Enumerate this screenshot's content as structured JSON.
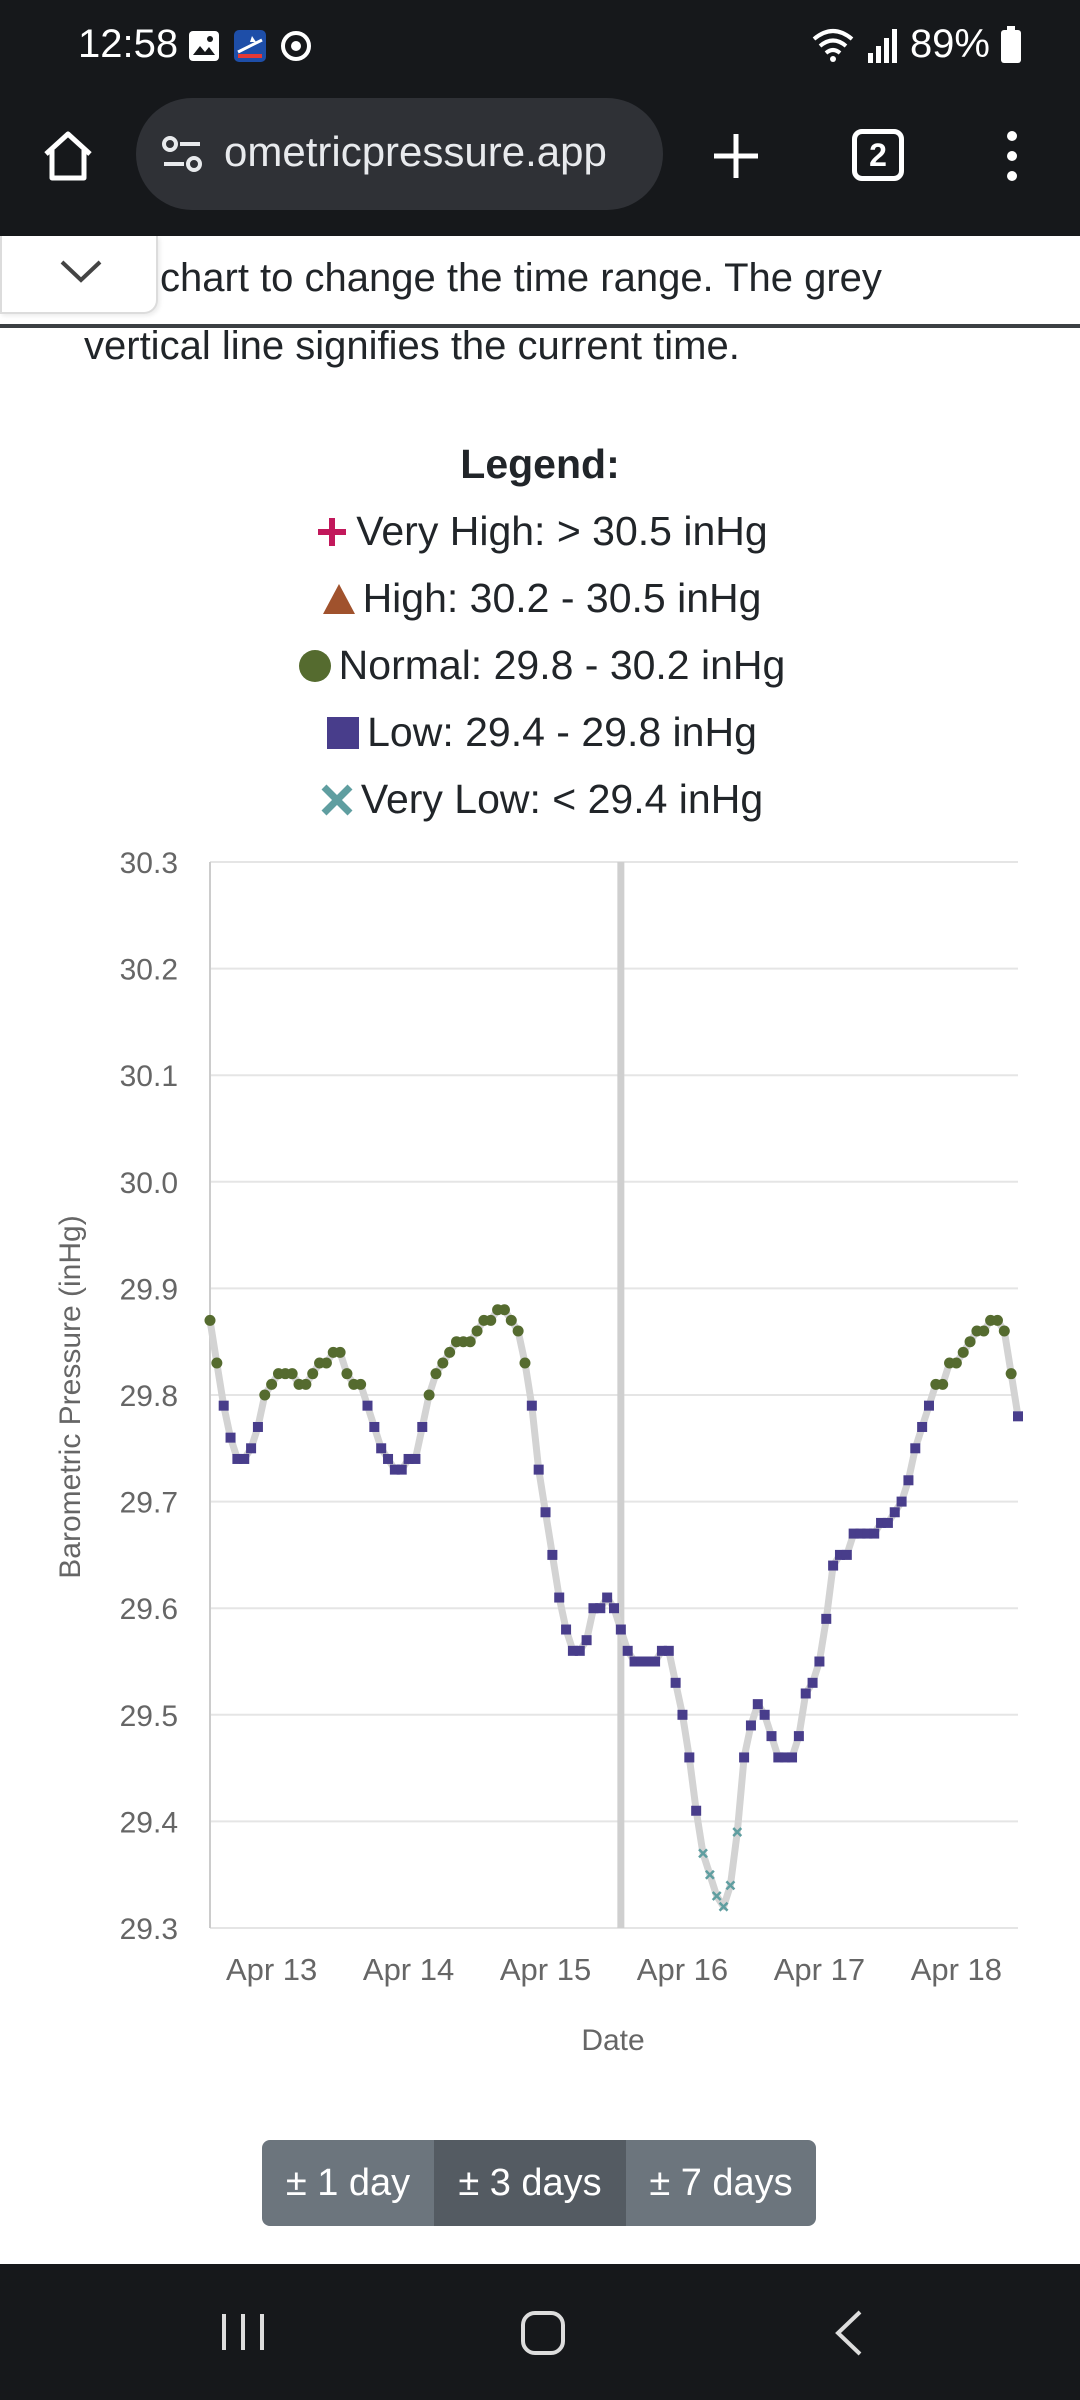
{
  "status_bar": {
    "time": "12:58",
    "battery": "89%",
    "icons": [
      "gallery-icon",
      "app-notification-icon",
      "sync-icon",
      "wifi-icon",
      "signal-icon",
      "battery-icon"
    ]
  },
  "browser": {
    "url_display": "ometricpressure.app",
    "tab_count": "2"
  },
  "page": {
    "intro_line1": "chart to change the time range. The grey",
    "intro_line2": "vertical line signifies the current time.",
    "legend": {
      "title": "Legend:",
      "items": [
        {
          "label": "Very High: > 30.5 inHg",
          "symbol": "plus",
          "color": "#c2185b"
        },
        {
          "label": "High: 30.2 - 30.5 inHg",
          "symbol": "triangle",
          "color": "#a0522d"
        },
        {
          "label": "Normal: 29.8 - 30.2 inHg",
          "symbol": "circle",
          "color": "#556b2f"
        },
        {
          "label": "Low: 29.4 - 29.8 inHg",
          "symbol": "square",
          "color": "#483d8b"
        },
        {
          "label": "Very Low: < 29.4 inHg",
          "symbol": "x",
          "color": "#5f9ea0"
        }
      ]
    },
    "range_buttons": [
      "± 1 day",
      "± 3 days",
      "± 7 days"
    ],
    "active_range": "± 3 days"
  },
  "chart_data": {
    "type": "scatter",
    "title": "",
    "xlabel": "Date",
    "ylabel": "Barometric Pressure (inHg)",
    "ylim": [
      29.3,
      30.3
    ],
    "xlim": [
      12.55,
      18.45
    ],
    "yticks": [
      "30.3",
      "30.2",
      "30.1",
      "30.0",
      "29.9",
      "29.8",
      "29.7",
      "29.6",
      "29.5",
      "29.4",
      "29.3"
    ],
    "xticks": [
      {
        "value": 13,
        "label": "Apr 13"
      },
      {
        "value": 14,
        "label": "Apr 14"
      },
      {
        "value": 15,
        "label": "Apr 15"
      },
      {
        "value": 16,
        "label": "Apr 16"
      },
      {
        "value": 17,
        "label": "Apr 17"
      },
      {
        "value": 18,
        "label": "Apr 18"
      }
    ],
    "current_time_x": 15.55,
    "line_color": "#d3d3d3",
    "category_thresholds": {
      "very_high": 30.5,
      "high": 30.2,
      "normal": 29.8,
      "low": 29.4
    },
    "series": [
      {
        "name": "Barometric Pressure",
        "points": [
          [
            12.55,
            29.87
          ],
          [
            12.6,
            29.83
          ],
          [
            12.65,
            29.79
          ],
          [
            12.7,
            29.76
          ],
          [
            12.75,
            29.74
          ],
          [
            12.8,
            29.74
          ],
          [
            12.85,
            29.75
          ],
          [
            12.9,
            29.77
          ],
          [
            12.95,
            29.8
          ],
          [
            13.0,
            29.81
          ],
          [
            13.05,
            29.82
          ],
          [
            13.1,
            29.82
          ],
          [
            13.15,
            29.82
          ],
          [
            13.2,
            29.81
          ],
          [
            13.25,
            29.81
          ],
          [
            13.3,
            29.82
          ],
          [
            13.35,
            29.83
          ],
          [
            13.4,
            29.83
          ],
          [
            13.45,
            29.84
          ],
          [
            13.5,
            29.84
          ],
          [
            13.55,
            29.82
          ],
          [
            13.6,
            29.81
          ],
          [
            13.65,
            29.81
          ],
          [
            13.7,
            29.79
          ],
          [
            13.75,
            29.77
          ],
          [
            13.8,
            29.75
          ],
          [
            13.85,
            29.74
          ],
          [
            13.9,
            29.73
          ],
          [
            13.95,
            29.73
          ],
          [
            14.0,
            29.74
          ],
          [
            14.05,
            29.74
          ],
          [
            14.1,
            29.77
          ],
          [
            14.15,
            29.8
          ],
          [
            14.2,
            29.82
          ],
          [
            14.25,
            29.83
          ],
          [
            14.3,
            29.84
          ],
          [
            14.35,
            29.85
          ],
          [
            14.4,
            29.85
          ],
          [
            14.45,
            29.85
          ],
          [
            14.5,
            29.86
          ],
          [
            14.55,
            29.87
          ],
          [
            14.6,
            29.87
          ],
          [
            14.65,
            29.88
          ],
          [
            14.7,
            29.88
          ],
          [
            14.75,
            29.87
          ],
          [
            14.8,
            29.86
          ],
          [
            14.85,
            29.83
          ],
          [
            14.9,
            29.79
          ],
          [
            14.95,
            29.73
          ],
          [
            15.0,
            29.69
          ],
          [
            15.05,
            29.65
          ],
          [
            15.1,
            29.61
          ],
          [
            15.15,
            29.58
          ],
          [
            15.2,
            29.56
          ],
          [
            15.25,
            29.56
          ],
          [
            15.3,
            29.57
          ],
          [
            15.35,
            29.6
          ],
          [
            15.4,
            29.6
          ],
          [
            15.45,
            29.61
          ],
          [
            15.5,
            29.6
          ],
          [
            15.55,
            29.58
          ],
          [
            15.6,
            29.56
          ],
          [
            15.65,
            29.55
          ],
          [
            15.7,
            29.55
          ],
          [
            15.75,
            29.55
          ],
          [
            15.8,
            29.55
          ],
          [
            15.85,
            29.56
          ],
          [
            15.9,
            29.56
          ],
          [
            15.95,
            29.53
          ],
          [
            16.0,
            29.5
          ],
          [
            16.05,
            29.46
          ],
          [
            16.1,
            29.41
          ],
          [
            16.15,
            29.37
          ],
          [
            16.2,
            29.35
          ],
          [
            16.25,
            29.33
          ],
          [
            16.3,
            29.32
          ],
          [
            16.35,
            29.34
          ],
          [
            16.4,
            29.39
          ],
          [
            16.45,
            29.46
          ],
          [
            16.5,
            29.49
          ],
          [
            16.55,
            29.51
          ],
          [
            16.6,
            29.5
          ],
          [
            16.65,
            29.48
          ],
          [
            16.7,
            29.46
          ],
          [
            16.75,
            29.46
          ],
          [
            16.8,
            29.46
          ],
          [
            16.85,
            29.48
          ],
          [
            16.9,
            29.52
          ],
          [
            16.95,
            29.53
          ],
          [
            17.0,
            29.55
          ],
          [
            17.05,
            29.59
          ],
          [
            17.1,
            29.64
          ],
          [
            17.15,
            29.65
          ],
          [
            17.2,
            29.65
          ],
          [
            17.25,
            29.67
          ],
          [
            17.3,
            29.67
          ],
          [
            17.35,
            29.67
          ],
          [
            17.4,
            29.67
          ],
          [
            17.45,
            29.68
          ],
          [
            17.5,
            29.68
          ],
          [
            17.55,
            29.69
          ],
          [
            17.6,
            29.7
          ],
          [
            17.65,
            29.72
          ],
          [
            17.7,
            29.75
          ],
          [
            17.75,
            29.77
          ],
          [
            17.8,
            29.79
          ],
          [
            17.85,
            29.81
          ],
          [
            17.9,
            29.81
          ],
          [
            17.95,
            29.83
          ],
          [
            18.0,
            29.83
          ],
          [
            18.05,
            29.84
          ],
          [
            18.1,
            29.85
          ],
          [
            18.15,
            29.86
          ],
          [
            18.2,
            29.86
          ],
          [
            18.25,
            29.87
          ],
          [
            18.3,
            29.87
          ],
          [
            18.35,
            29.86
          ],
          [
            18.4,
            29.82
          ],
          [
            18.45,
            29.78
          ]
        ]
      }
    ]
  }
}
